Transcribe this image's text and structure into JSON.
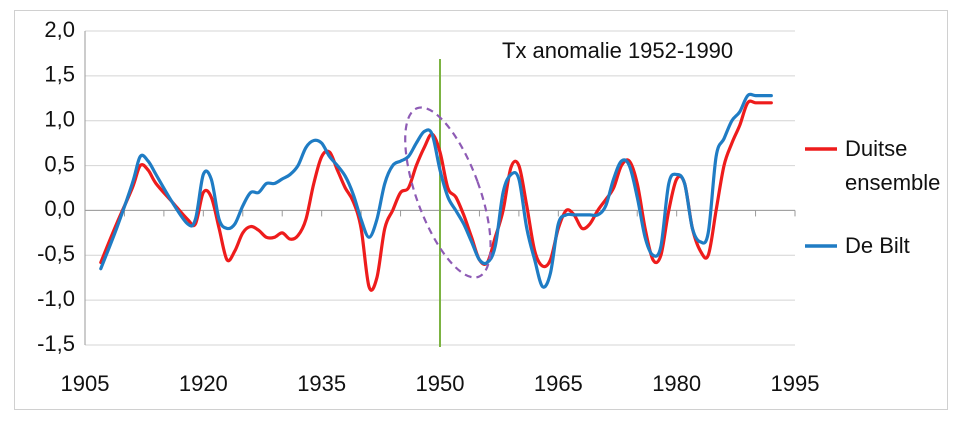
{
  "chart_data": {
    "type": "line",
    "title": "Tx anomalie 1952-1990",
    "xlabel": "",
    "ylabel": "",
    "xlim": [
      1905,
      1995
    ],
    "ylim": [
      -1.5,
      2.0
    ],
    "x_ticks": [
      "1905",
      "1920",
      "1935",
      "1950",
      "1965",
      "1980",
      "1995"
    ],
    "x_tick_values": [
      1905,
      1920,
      1935,
      1950,
      1965,
      1980,
      1995
    ],
    "y_ticks": [
      "2,0",
      "1,5",
      "1,0",
      "0,5",
      "0,0",
      "-0,5",
      "-1,0",
      "-1,5"
    ],
    "y_tick_values": [
      2.0,
      1.5,
      1.0,
      0.5,
      0.0,
      -0.5,
      -1.0,
      -1.5
    ],
    "grid": "horizontal",
    "legend_position": "right",
    "vertical_marker": {
      "x": 1950,
      "color": "#7cb342"
    },
    "highlight_ellipse": {
      "center": [
        1951,
        0.2
      ],
      "radius_years": 4,
      "radius_values": 1.0,
      "tilt": -20,
      "color": "#8e5bb5"
    },
    "series": [
      {
        "name": "Duitse ensemble",
        "legend_lines": [
          "Duitse",
          "ensemble"
        ],
        "color": "#ee1c1c",
        "x": [
          1907,
          1909,
          1911,
          1912,
          1913,
          1914,
          1916,
          1918,
          1919,
          1920,
          1921,
          1922,
          1923,
          1924,
          1925,
          1926,
          1927,
          1928,
          1929,
          1930,
          1931,
          1932,
          1933,
          1934,
          1935,
          1936,
          1937,
          1938,
          1939,
          1940,
          1941,
          1942,
          1943,
          1944,
          1945,
          1946,
          1947,
          1948,
          1949,
          1950,
          1951,
          1952,
          1953,
          1954,
          1955,
          1956,
          1957,
          1958,
          1959,
          1960,
          1961,
          1962,
          1963,
          1964,
          1965,
          1966,
          1967,
          1968,
          1969,
          1970,
          1971,
          1972,
          1973,
          1974,
          1975,
          1976,
          1977,
          1978,
          1979,
          1980,
          1981,
          1982,
          1983,
          1984,
          1985,
          1986,
          1987,
          1988,
          1989,
          1990,
          1991,
          1992
        ],
        "y": [
          -0.58,
          -0.15,
          0.25,
          0.5,
          0.45,
          0.3,
          0.1,
          -0.1,
          -0.15,
          0.2,
          0.15,
          -0.2,
          -0.55,
          -0.45,
          -0.25,
          -0.18,
          -0.22,
          -0.3,
          -0.3,
          -0.25,
          -0.32,
          -0.28,
          -0.1,
          0.3,
          0.6,
          0.65,
          0.45,
          0.25,
          0.1,
          -0.2,
          -0.85,
          -0.75,
          -0.2,
          0.0,
          0.2,
          0.25,
          0.5,
          0.7,
          0.85,
          0.65,
          0.25,
          0.15,
          -0.05,
          -0.3,
          -0.55,
          -0.58,
          -0.3,
          0.0,
          0.48,
          0.5,
          0.05,
          -0.45,
          -0.62,
          -0.55,
          -0.2,
          0.0,
          -0.05,
          -0.2,
          -0.15,
          0.0,
          0.12,
          0.25,
          0.5,
          0.55,
          0.3,
          -0.2,
          -0.55,
          -0.5,
          0.0,
          0.35,
          0.3,
          -0.2,
          -0.45,
          -0.5,
          0.0,
          0.5,
          0.75,
          0.95,
          1.2,
          1.2,
          1.2,
          1.2
        ]
      },
      {
        "name": "De Bilt",
        "legend_lines": [
          "De Bilt"
        ],
        "color": "#1f7cc4",
        "x": [
          1907,
          1909,
          1911,
          1912,
          1913,
          1914,
          1916,
          1918,
          1919,
          1920,
          1921,
          1922,
          1923,
          1924,
          1925,
          1926,
          1927,
          1928,
          1929,
          1930,
          1931,
          1932,
          1933,
          1934,
          1935,
          1936,
          1937,
          1938,
          1939,
          1940,
          1941,
          1942,
          1943,
          1944,
          1945,
          1946,
          1947,
          1948,
          1949,
          1950,
          1951,
          1952,
          1953,
          1954,
          1955,
          1956,
          1957,
          1958,
          1959,
          1960,
          1961,
          1962,
          1963,
          1964,
          1965,
          1966,
          1967,
          1968,
          1969,
          1970,
          1971,
          1972,
          1973,
          1974,
          1975,
          1976,
          1977,
          1978,
          1979,
          1980,
          1981,
          1982,
          1983,
          1984,
          1985,
          1986,
          1987,
          1988,
          1989,
          1990,
          1991,
          1992
        ],
        "y": [
          -0.65,
          -0.2,
          0.3,
          0.6,
          0.55,
          0.4,
          0.1,
          -0.15,
          -0.1,
          0.4,
          0.35,
          -0.1,
          -0.2,
          -0.15,
          0.05,
          0.2,
          0.2,
          0.3,
          0.3,
          0.35,
          0.4,
          0.5,
          0.7,
          0.78,
          0.75,
          0.6,
          0.5,
          0.38,
          0.18,
          -0.1,
          -0.3,
          -0.1,
          0.3,
          0.5,
          0.55,
          0.6,
          0.75,
          0.88,
          0.85,
          0.45,
          0.15,
          0.0,
          -0.15,
          -0.35,
          -0.55,
          -0.58,
          -0.4,
          0.2,
          0.4,
          0.35,
          -0.2,
          -0.55,
          -0.85,
          -0.7,
          -0.15,
          -0.05,
          -0.05,
          -0.05,
          -0.05,
          -0.05,
          0.05,
          0.35,
          0.55,
          0.5,
          0.15,
          -0.3,
          -0.5,
          -0.4,
          0.3,
          0.4,
          0.3,
          -0.2,
          -0.35,
          -0.25,
          0.6,
          0.8,
          1.0,
          1.1,
          1.28,
          1.28,
          1.28,
          1.28
        ]
      }
    ]
  }
}
